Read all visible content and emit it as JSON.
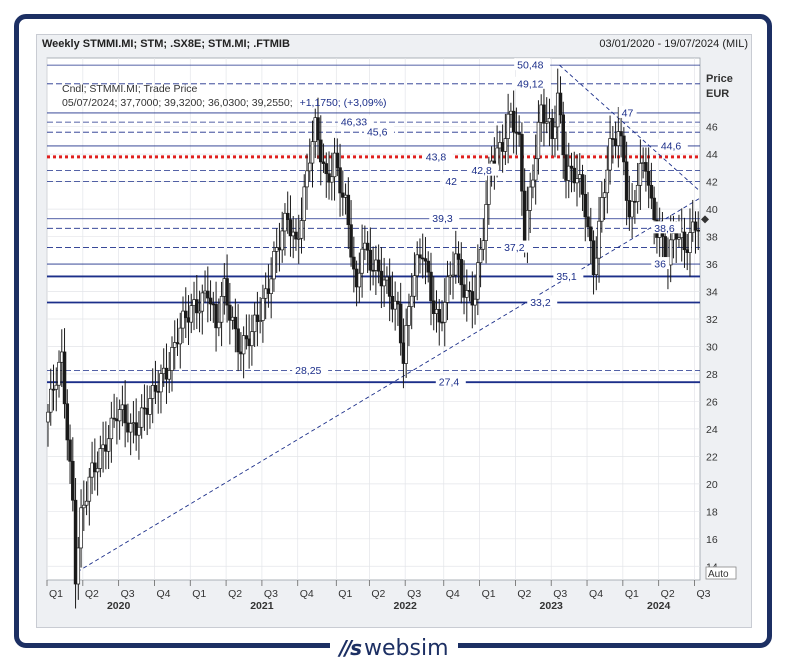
{
  "header": {
    "title": "Weekly STMMI.MI; STM; .SX8E; STM.MI; .FTMIB",
    "date_range": "03/01/2020 - 19/07/2024 (MIL)"
  },
  "logo": {
    "text": "websim"
  },
  "chart_data": {
    "type": "candlestick",
    "info_line1": "Cndl; STMMI.MI; Trade Price",
    "info_line2_prefix": "05/07/2024; 37,7000; 39,3200; 36,0300; 39,2550;",
    "info_line2_change": "+1,1750; (+3,09%)",
    "ylabel": "Price",
    "yunit": "EUR",
    "auto_label": "Auto",
    "ylim": [
      13,
      51
    ],
    "y_ticks": [
      14,
      16,
      18,
      20,
      22,
      24,
      26,
      28,
      30,
      32,
      34,
      36,
      38,
      40,
      42,
      44,
      46
    ],
    "x_range": [
      "2020-01-03",
      "2024-07-19"
    ],
    "quarter_ticks": [
      {
        "label": "Q1",
        "date": "2020-01-03"
      },
      {
        "label": "Q2",
        "date": "2020-04-03"
      },
      {
        "label": "Q3",
        "date": "2020-07-03"
      },
      {
        "label": "Q4",
        "date": "2020-10-02"
      },
      {
        "label": "Q1",
        "date": "2021-01-01"
      },
      {
        "label": "Q2",
        "date": "2021-04-02"
      },
      {
        "label": "Q3",
        "date": "2021-07-02"
      },
      {
        "label": "Q4",
        "date": "2021-10-01"
      },
      {
        "label": "Q1",
        "date": "2022-01-07"
      },
      {
        "label": "Q2",
        "date": "2022-04-01"
      },
      {
        "label": "Q3",
        "date": "2022-07-01"
      },
      {
        "label": "Q4",
        "date": "2022-10-07"
      },
      {
        "label": "Q1",
        "date": "2023-01-06"
      },
      {
        "label": "Q2",
        "date": "2023-04-07"
      },
      {
        "label": "Q3",
        "date": "2023-07-07"
      },
      {
        "label": "Q4",
        "date": "2023-10-06"
      },
      {
        "label": "Q1",
        "date": "2024-01-05"
      },
      {
        "label": "Q2",
        "date": "2024-04-05"
      },
      {
        "label": "Q3",
        "date": "2024-07-05"
      }
    ],
    "year_labels": [
      {
        "label": "2020",
        "date": "2020-07-03"
      },
      {
        "label": "2021",
        "date": "2021-07-02"
      },
      {
        "label": "2022",
        "date": "2022-07-01"
      },
      {
        "label": "2023",
        "date": "2023-07-07"
      },
      {
        "label": "2024",
        "date": "2024-04-05"
      }
    ],
    "last_price": 39.255,
    "price_path": [
      [
        "2020-01-03",
        24.5
      ],
      [
        "2020-02-14",
        28.8
      ],
      [
        "2020-03-13",
        19.0
      ],
      [
        "2020-03-20",
        13.8
      ],
      [
        "2020-04-03",
        17.5
      ],
      [
        "2020-05-01",
        20.5
      ],
      [
        "2020-06-05",
        23.5
      ],
      [
        "2020-07-03",
        25.0
      ],
      [
        "2020-08-07",
        24.0
      ],
      [
        "2020-09-11",
        25.5
      ],
      [
        "2020-10-02",
        26.0
      ],
      [
        "2020-11-06",
        28.5
      ],
      [
        "2020-12-04",
        31.0
      ],
      [
        "2021-01-01",
        32.0
      ],
      [
        "2021-02-19",
        34.5
      ],
      [
        "2021-03-12",
        31.0
      ],
      [
        "2021-04-02",
        34.0
      ],
      [
        "2021-05-14",
        30.0
      ],
      [
        "2021-06-11",
        30.5
      ],
      [
        "2021-07-02",
        32.5
      ],
      [
        "2021-08-06",
        36.5
      ],
      [
        "2021-09-10",
        39.0
      ],
      [
        "2021-10-01",
        37.5
      ],
      [
        "2021-11-05",
        44.0
      ],
      [
        "2021-11-19",
        45.5
      ],
      [
        "2021-12-17",
        42.0
      ],
      [
        "2022-01-07",
        44.0
      ],
      [
        "2022-02-04",
        40.0
      ],
      [
        "2022-03-04",
        33.5
      ],
      [
        "2022-03-18",
        38.0
      ],
      [
        "2022-04-29",
        35.0
      ],
      [
        "2022-05-20",
        34.0
      ],
      [
        "2022-06-17",
        33.0
      ],
      [
        "2022-07-01",
        29.5
      ],
      [
        "2022-07-22",
        34.0
      ],
      [
        "2022-08-19",
        37.0
      ],
      [
        "2022-09-30",
        31.5
      ],
      [
        "2022-10-14",
        33.0
      ],
      [
        "2022-11-11",
        36.5
      ],
      [
        "2022-12-09",
        34.0
      ],
      [
        "2022-12-30",
        33.5
      ],
      [
        "2023-01-20",
        38.0
      ],
      [
        "2023-02-10",
        44.0
      ],
      [
        "2023-03-10",
        45.0
      ],
      [
        "2023-03-31",
        46.5
      ],
      [
        "2023-04-21",
        44.5
      ],
      [
        "2023-05-05",
        38.5
      ],
      [
        "2023-05-26",
        43.0
      ],
      [
        "2023-06-16",
        47.0
      ],
      [
        "2023-07-14",
        45.0
      ],
      [
        "2023-07-28",
        48.5
      ],
      [
        "2023-08-18",
        43.0
      ],
      [
        "2023-09-15",
        42.0
      ],
      [
        "2023-10-06",
        40.0
      ],
      [
        "2023-10-27",
        36.0
      ],
      [
        "2023-11-17",
        40.5
      ],
      [
        "2023-12-08",
        44.0
      ],
      [
        "2023-12-29",
        45.5
      ],
      [
        "2024-01-12",
        44.0
      ],
      [
        "2024-01-26",
        39.5
      ],
      [
        "2024-02-16",
        42.0
      ],
      [
        "2024-03-08",
        43.0
      ],
      [
        "2024-03-22",
        40.0
      ],
      [
        "2024-04-12",
        38.5
      ],
      [
        "2024-05-03",
        36.5
      ],
      [
        "2024-05-24",
        38.0
      ],
      [
        "2024-06-14",
        37.0
      ],
      [
        "2024-06-28",
        38.5
      ],
      [
        "2024-07-12",
        39.255
      ]
    ],
    "levels": [
      {
        "value": 50.48,
        "label": "50,48",
        "style": "solid"
      },
      {
        "value": 49.12,
        "label": "49,12",
        "style": "dashed"
      },
      {
        "value": 47,
        "label": "47",
        "style": "solid"
      },
      {
        "value": 46.33,
        "label": "46,33",
        "style": "dashed"
      },
      {
        "value": 45.6,
        "label": "45,6",
        "style": "dashed"
      },
      {
        "value": 44.6,
        "label": "44,6",
        "style": "solid"
      },
      {
        "value": 43.8,
        "label": "43,8",
        "style": "dotted-red"
      },
      {
        "value": 42.8,
        "label": "42,8",
        "style": "dashed"
      },
      {
        "value": 42,
        "label": "42",
        "style": "dashed"
      },
      {
        "value": 39.3,
        "label": "39,3",
        "style": "solid"
      },
      {
        "value": 38.6,
        "label": "38,6",
        "style": "dashed"
      },
      {
        "value": 37.2,
        "label": "37,2",
        "style": "dashed"
      },
      {
        "value": 36,
        "label": "36",
        "style": "solid"
      },
      {
        "value": 35.1,
        "label": "35,1",
        "style": "thick"
      },
      {
        "value": 33.2,
        "label": "33,2",
        "style": "thick"
      },
      {
        "value": 28.25,
        "label": "28,25",
        "style": "dashed"
      },
      {
        "value": 27.4,
        "label": "27,4",
        "style": "thick"
      }
    ],
    "trendlines": [
      {
        "from": [
          "2020-03-20",
          13.6
        ],
        "to": [
          "2024-07-19",
          40.8
        ]
      },
      {
        "from": [
          "2023-07-28",
          50.48
        ],
        "to": [
          "2024-07-19",
          41.3
        ]
      }
    ],
    "colors": {
      "up": "#1a1a1a",
      "down": "#1a1a1a",
      "level": "#1c2f8a",
      "support_red": "#e0201f",
      "label_text": "#1c2f8a",
      "frame": "#1c2f63"
    }
  }
}
